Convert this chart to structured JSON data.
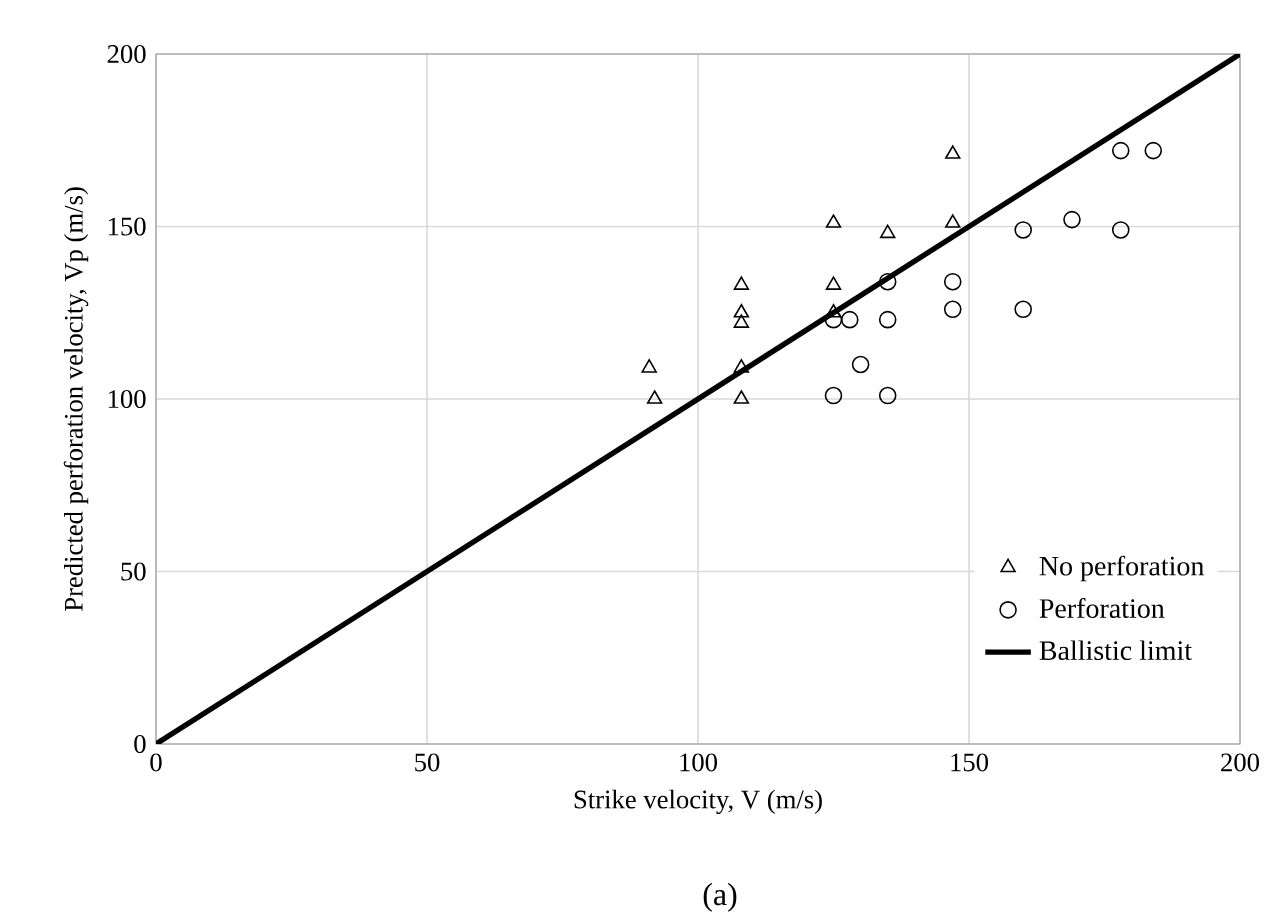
{
  "chart_data": {
    "type": "scatter",
    "xlabel": "Strike velocity,  V (m/s)",
    "ylabel": "Predicted perforation velocity,  Vp (m/s)",
    "annotations": [
      "(a)"
    ],
    "xlim": [
      0,
      200
    ],
    "ylim": [
      0,
      200
    ],
    "xticks": [
      0,
      50,
      100,
      150,
      200
    ],
    "yticks": [
      0,
      50,
      100,
      150,
      200
    ],
    "grid": true,
    "legend": "bottom right",
    "series": [
      {
        "name": "No perforation",
        "marker": "triangle",
        "color": "#000000",
        "x": [
          91,
          92,
          108,
          108,
          108,
          108,
          108,
          125,
          125,
          125,
          135,
          147,
          147
        ],
        "values": [
          109,
          100,
          133,
          125,
          122,
          109,
          100,
          151,
          133,
          125,
          148,
          171,
          151
        ]
      },
      {
        "name": "Perforation",
        "marker": "circle",
        "color": "#000000",
        "x": [
          125,
          125,
          128,
          130,
          135,
          135,
          135,
          147,
          147,
          160,
          160,
          169,
          178,
          178,
          184
        ],
        "values": [
          123,
          101,
          123,
          110,
          134,
          123,
          101,
          134,
          126,
          149,
          126,
          152,
          172,
          149,
          172
        ]
      },
      {
        "name": "Ballistic limit",
        "type": "line",
        "marker": "none",
        "color": "#000000",
        "x": [
          0,
          200
        ],
        "values": [
          0,
          200
        ]
      }
    ]
  }
}
